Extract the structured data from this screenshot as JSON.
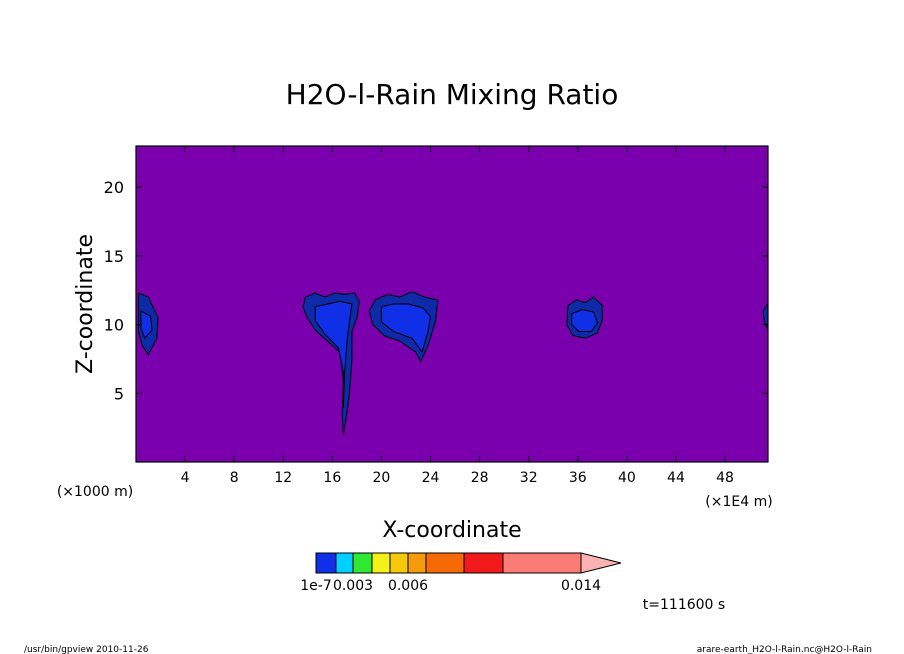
{
  "chart_data": {
    "type": "heatmap",
    "title": "H2O-l-Rain Mixing Ratio",
    "xlabel": "X-coordinate",
    "ylabel": "Z-coordinate",
    "x_unit_left": "(×1000 m)",
    "x_unit_right": "(×1E4 m)",
    "xlim": [
      0,
      51.5
    ],
    "ylim": [
      0,
      23
    ],
    "x_ticks": [
      4,
      8,
      12,
      16,
      20,
      24,
      28,
      32,
      36,
      40,
      44,
      48
    ],
    "y_ticks": [
      5,
      10,
      15,
      20
    ],
    "background_color": "#7b00ad",
    "colorbar": {
      "colors": [
        "#1030e8",
        "#00cfff",
        "#2ee832",
        "#f2f21a",
        "#f5c80a",
        "#f59a0a",
        "#f56a05",
        "#f01a1a",
        "#fb7b75"
      ],
      "extend_color": "#fbb2b2",
      "labels": [
        "1e-7",
        "0.003",
        "0.006",
        "0.014"
      ]
    },
    "regions": [
      {
        "level": "outer",
        "color": "#0e2aa8",
        "points": [
          [
            0.2,
            12.3
          ],
          [
            1.0,
            12.0
          ],
          [
            1.8,
            10.5
          ],
          [
            1.7,
            9.0
          ],
          [
            1.0,
            7.8
          ],
          [
            0.5,
            8.5
          ],
          [
            0.2,
            9.5
          ]
        ]
      },
      {
        "level": "inner",
        "color": "#1030e8",
        "points": [
          [
            0.4,
            11.0
          ],
          [
            1.2,
            10.6
          ],
          [
            1.3,
            9.6
          ],
          [
            0.7,
            9.0
          ],
          [
            0.4,
            9.8
          ]
        ]
      },
      {
        "level": "outer",
        "color": "#0e2aa8",
        "points": [
          [
            13.8,
            12.0
          ],
          [
            14.6,
            12.3
          ],
          [
            15.4,
            12.0
          ],
          [
            16.2,
            12.3
          ],
          [
            17.0,
            12.2
          ],
          [
            17.8,
            12.3
          ],
          [
            18.2,
            11.7
          ],
          [
            18.0,
            10.5
          ],
          [
            17.6,
            9.5
          ],
          [
            17.6,
            7.5
          ],
          [
            17.4,
            5.0
          ],
          [
            17.1,
            3.0
          ],
          [
            16.9,
            2.0
          ],
          [
            16.8,
            3.5
          ],
          [
            16.9,
            6.0
          ],
          [
            16.6,
            8.0
          ],
          [
            15.6,
            8.8
          ],
          [
            14.6,
            9.6
          ],
          [
            13.9,
            10.6
          ],
          [
            13.6,
            11.3
          ]
        ]
      },
      {
        "level": "inner",
        "color": "#1030e8",
        "points": [
          [
            14.6,
            11.3
          ],
          [
            15.6,
            11.5
          ],
          [
            16.6,
            11.7
          ],
          [
            17.6,
            11.5
          ],
          [
            17.4,
            10.3
          ],
          [
            17.2,
            8.8
          ],
          [
            17.0,
            6.5
          ],
          [
            16.9,
            4.0
          ],
          [
            16.9,
            6.5
          ],
          [
            16.5,
            8.3
          ],
          [
            15.4,
            9.3
          ],
          [
            14.6,
            10.3
          ]
        ]
      },
      {
        "level": "outer",
        "color": "#0e2aa8",
        "points": [
          [
            19.5,
            11.8
          ],
          [
            20.5,
            12.2
          ],
          [
            21.5,
            12.0
          ],
          [
            22.5,
            12.4
          ],
          [
            23.5,
            12.0
          ],
          [
            24.6,
            11.8
          ],
          [
            24.4,
            10.2
          ],
          [
            23.8,
            8.5
          ],
          [
            23.2,
            7.3
          ],
          [
            22.8,
            8.0
          ],
          [
            21.5,
            8.8
          ],
          [
            20.2,
            9.2
          ],
          [
            19.3,
            10.0
          ],
          [
            19.0,
            11.0
          ]
        ]
      },
      {
        "level": "inner",
        "color": "#1030e8",
        "points": [
          [
            20.0,
            11.3
          ],
          [
            21.0,
            11.5
          ],
          [
            22.2,
            11.5
          ],
          [
            23.4,
            11.2
          ],
          [
            24.0,
            10.6
          ],
          [
            23.8,
            9.5
          ],
          [
            23.3,
            8.0
          ],
          [
            22.5,
            9.0
          ],
          [
            21.0,
            9.5
          ],
          [
            20.0,
            10.2
          ]
        ]
      },
      {
        "level": "outer",
        "color": "#0e2aa8",
        "points": [
          [
            35.2,
            11.4
          ],
          [
            35.9,
            11.8
          ],
          [
            36.6,
            11.6
          ],
          [
            37.3,
            12.0
          ],
          [
            38.0,
            11.4
          ],
          [
            38.0,
            10.3
          ],
          [
            37.6,
            9.4
          ],
          [
            36.6,
            9.0
          ],
          [
            35.6,
            9.2
          ],
          [
            35.1,
            10.0
          ]
        ]
      },
      {
        "level": "inner",
        "color": "#1030e8",
        "points": [
          [
            35.5,
            10.8
          ],
          [
            36.4,
            11.1
          ],
          [
            37.3,
            10.9
          ],
          [
            37.6,
            10.1
          ],
          [
            37.1,
            9.5
          ],
          [
            36.1,
            9.5
          ],
          [
            35.5,
            10.0
          ]
        ]
      },
      {
        "level": "outer",
        "color": "#0e2aa8",
        "points": [
          [
            51.1,
            11.0
          ],
          [
            51.5,
            11.6
          ],
          [
            51.5,
            9.6
          ],
          [
            51.2,
            10.2
          ]
        ]
      }
    ],
    "time_label": "t=111600 s",
    "footer_left": "/usr/bin/gpview  2010-11-26",
    "footer_right": "arare-earth_H2O-l-Rain.nc@H2O-l-Rain"
  }
}
